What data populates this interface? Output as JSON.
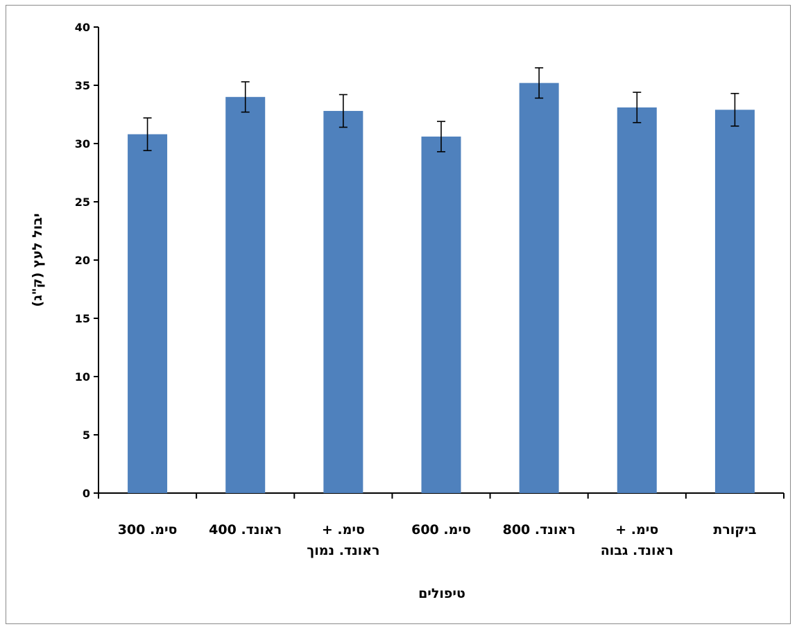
{
  "chart_data": {
    "type": "bar",
    "title": "",
    "xlabel": "טיפולים",
    "ylabel": "יבול לעץ (ק\"ג)",
    "categories": [
      [
        "סימ. 300"
      ],
      [
        "ראונד. 400"
      ],
      [
        "סימ. +",
        "ראונד. נמוך"
      ],
      [
        "סימ. 600"
      ],
      [
        "ראונד. 800"
      ],
      [
        "סימ. +",
        "ראונד. גבוה"
      ],
      [
        "ביקורת"
      ]
    ],
    "values": [
      30.8,
      34.0,
      32.8,
      30.6,
      35.2,
      33.1,
      32.9
    ],
    "error": [
      1.4,
      1.3,
      1.4,
      1.3,
      1.3,
      1.3,
      1.4
    ],
    "ylim": [
      0,
      40
    ],
    "yticks": [
      0,
      5,
      10,
      15,
      20,
      25,
      30,
      35,
      40
    ],
    "grid": false,
    "bar_color": "#4f81bd"
  }
}
